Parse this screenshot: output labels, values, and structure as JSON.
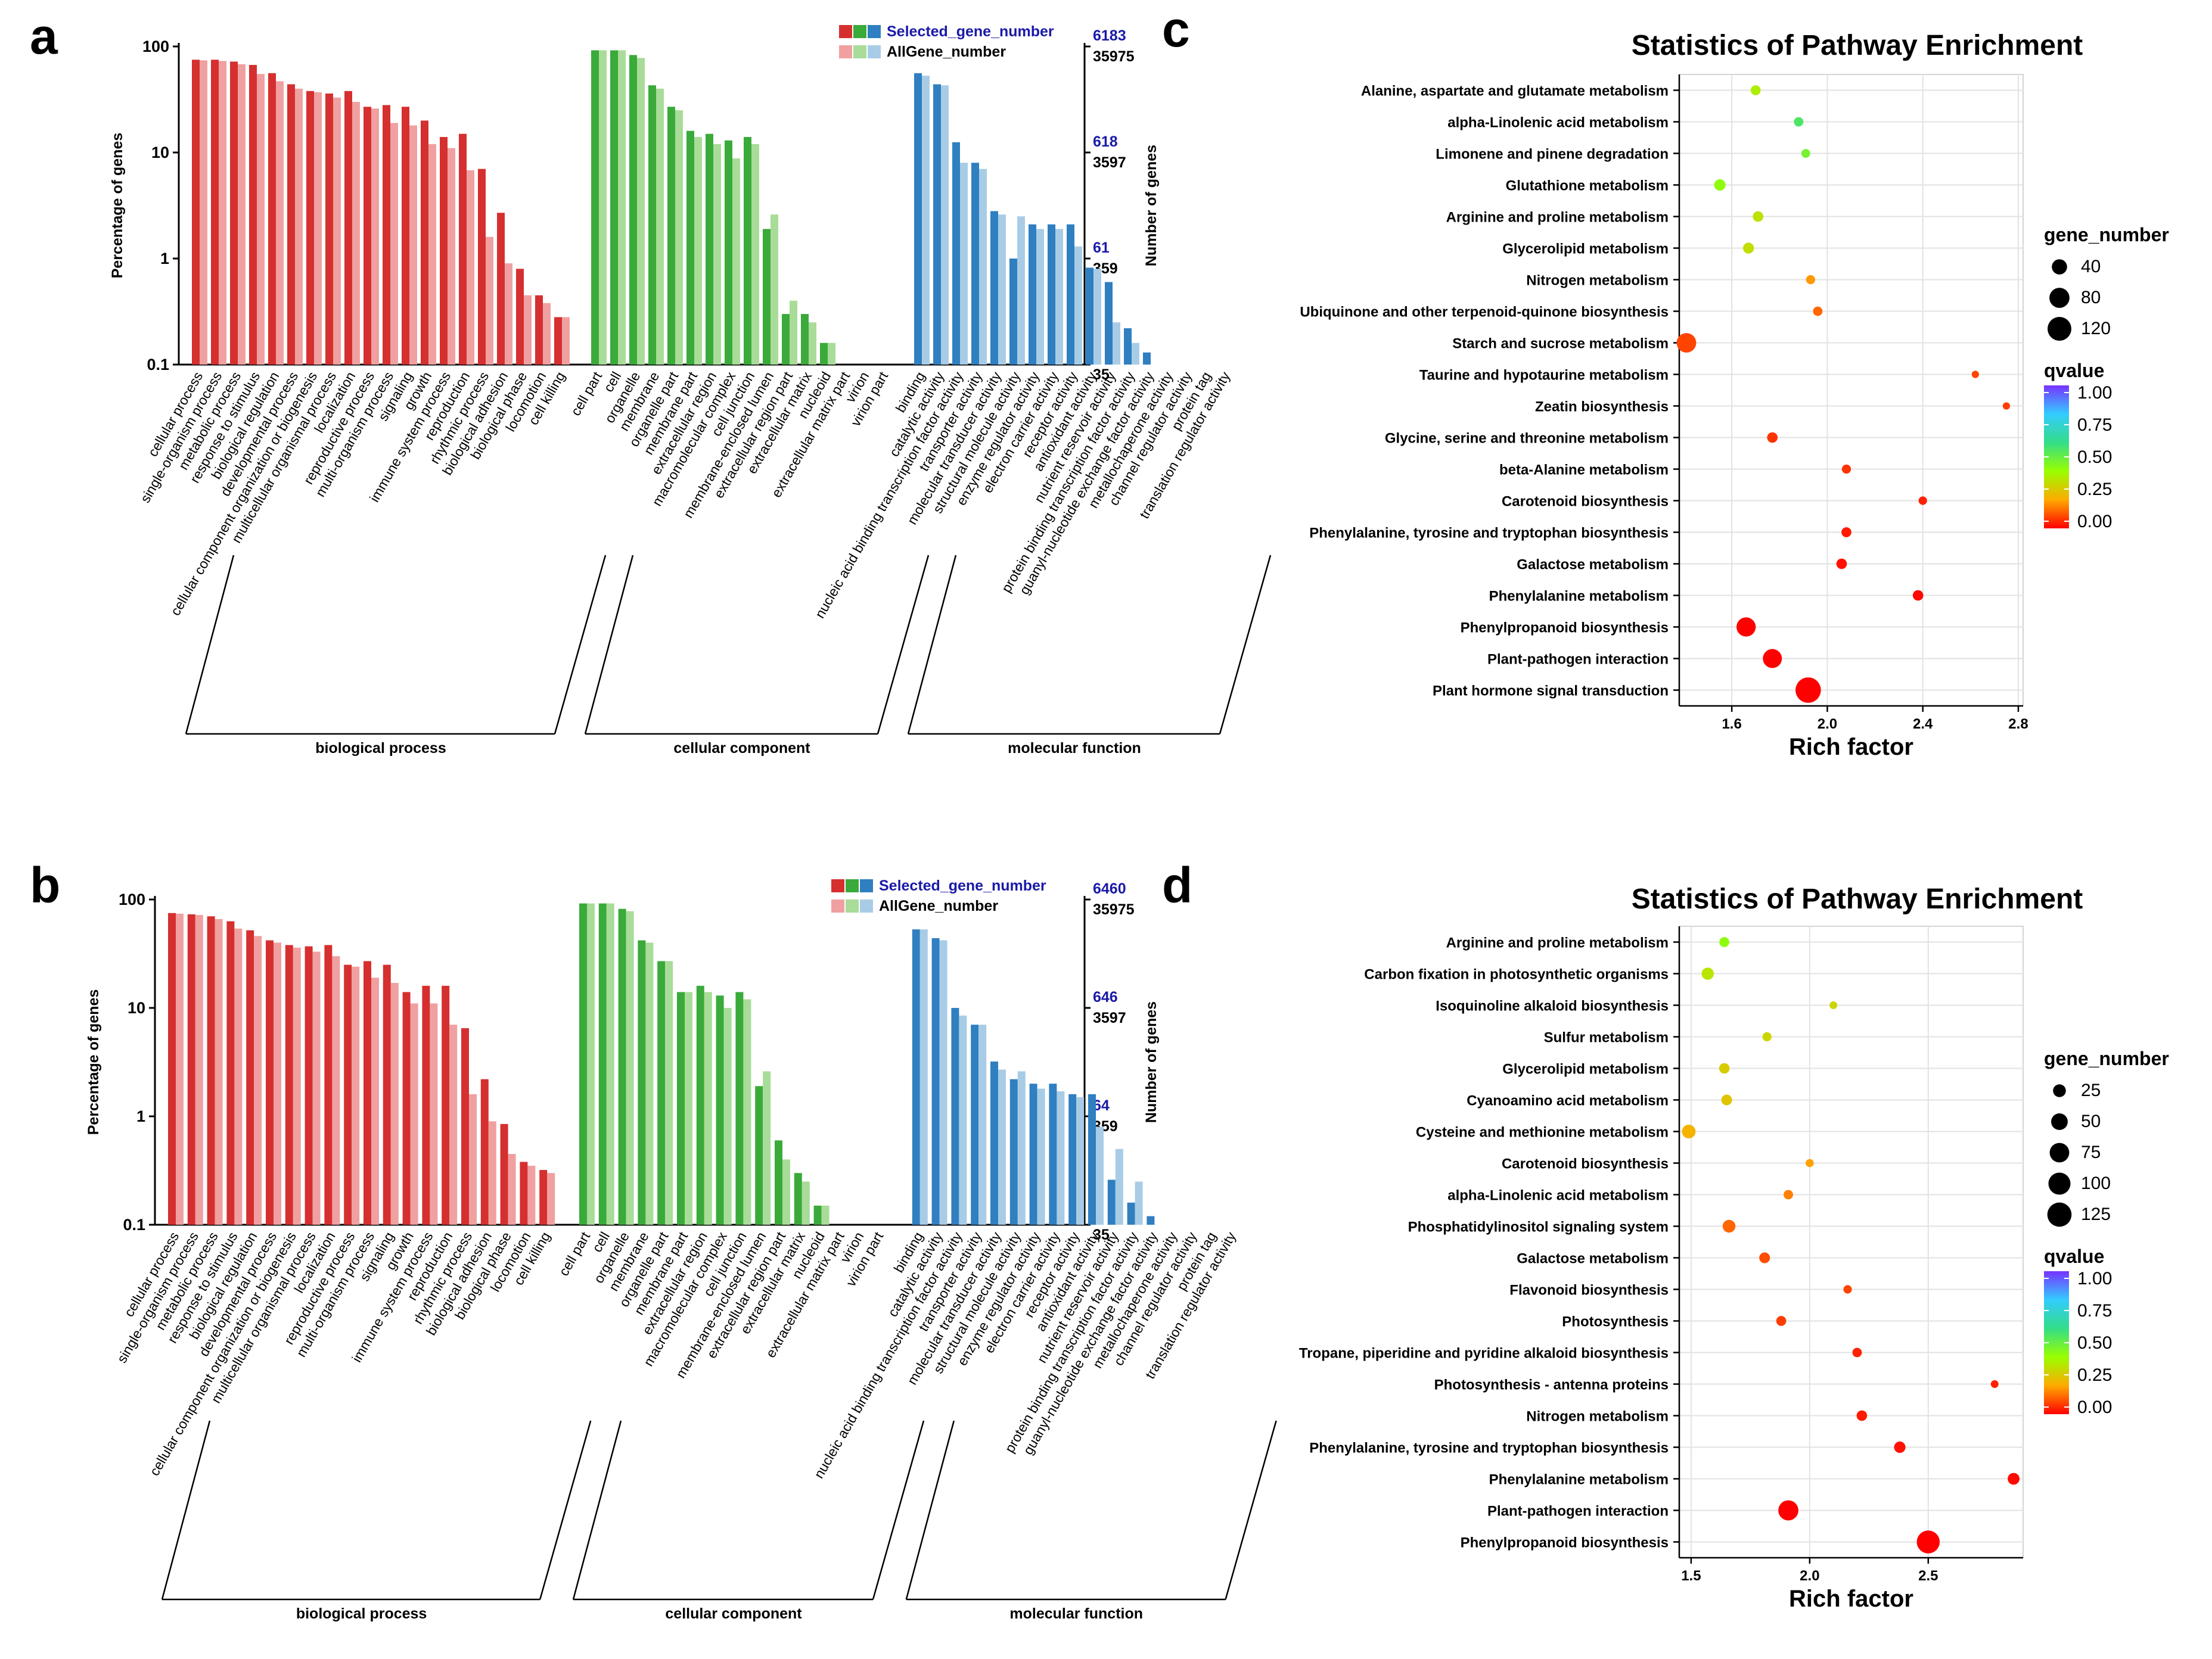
{
  "figure": {
    "panels": [
      "a",
      "b",
      "c",
      "d"
    ]
  },
  "chart_data": [
    {
      "panel": "a",
      "type": "bar",
      "ylabel_left": "Percentage of genes",
      "ylabel_right": "Number of genes",
      "yscale": "log",
      "left_ticks": [
        "100",
        "10",
        "1",
        "0.1"
      ],
      "right_ticks_selected": [
        "6183",
        "618",
        "61",
        "6"
      ],
      "right_ticks_all": [
        "35975",
        "3597",
        "359",
        "35"
      ],
      "legend": {
        "selected": "Selected_gene_number",
        "all": "AllGene_number"
      },
      "groups": [
        {
          "name": "biological process",
          "color_dark": "#d62f2f",
          "color_light": "#f0a0a0",
          "terms": [
            "cellular process",
            "single-organism process",
            "metabolic process",
            "response to stimulus",
            "biological regulation",
            "developmental process",
            "cellular component organization or biogenesis",
            "multicellular organismal process",
            "localization",
            "reproductive process",
            "multi-organism process",
            "signaling",
            "growth",
            "immune system process",
            "reproduction",
            "rhythmic process",
            "biological adhesion",
            "biological phase",
            "locomotion",
            "cell killing"
          ],
          "selected": [
            75,
            75,
            72,
            67,
            56,
            44,
            38,
            36,
            38,
            27,
            28,
            27,
            20,
            14,
            15,
            7,
            2.7,
            0.8,
            0.45,
            0.28
          ],
          "all": [
            74,
            73,
            68,
            55,
            47,
            40,
            37,
            33,
            30,
            26,
            19,
            18,
            12,
            11,
            6.8,
            1.6,
            0.9,
            0.45,
            0.38,
            0.28
          ]
        },
        {
          "name": "cellular component",
          "color_dark": "#3aaa3a",
          "color_light": "#a8dc98",
          "terms": [
            "cell part",
            "cell",
            "organelle",
            "membrane",
            "organelle part",
            "membrane part",
            "extracellular region",
            "macromolecular complex",
            "cell junction",
            "membrane-enclosed lumen",
            "extracellular region part",
            "extracellular matrix",
            "nucleoid",
            "extracellular matrix part",
            "virion",
            "virion part"
          ],
          "selected": [
            92,
            92,
            83,
            43,
            27,
            16,
            15,
            13,
            14,
            1.9,
            0.3,
            0.3,
            0.16,
            0,
            0,
            0
          ],
          "all": [
            92,
            92,
            78,
            40,
            25,
            14,
            12,
            8.8,
            12,
            2.6,
            0.4,
            0.25,
            0.16,
            0,
            0,
            0
          ]
        },
        {
          "name": "molecular function",
          "color_dark": "#2f7fc1",
          "color_light": "#a8cce6",
          "terms": [
            "binding",
            "catalytic activity",
            "nucleic acid binding transcription factor activity",
            "transporter activity",
            "molecular transducer activity",
            "structural molecule activity",
            "enzyme regulator activity",
            "electron carrier activity",
            "receptor activity",
            "antioxidant activity",
            "nutrient reservoir activity",
            "protein binding transcription factor activity",
            "guanyl-nucleotide exchange factor activity",
            "metallochaperone activity",
            "channel regulator activity",
            "protein tag",
            "translation regulator activity"
          ],
          "selected": [
            56,
            44,
            12.5,
            8,
            2.8,
            1,
            2.1,
            2.1,
            2.1,
            0.82,
            0.6,
            0.22,
            0.13,
            0,
            0,
            0,
            0
          ],
          "all": [
            53,
            43,
            8,
            7,
            2.6,
            2.5,
            1.9,
            1.9,
            1.3,
            0.8,
            0.25,
            0.16,
            0.1,
            0,
            0,
            0,
            0
          ]
        }
      ]
    },
    {
      "panel": "b",
      "type": "bar",
      "ylabel_left": "Percentage of genes",
      "ylabel_right": "Number of genes",
      "yscale": "log",
      "left_ticks": [
        "100",
        "10",
        "1",
        "0.1"
      ],
      "right_ticks_selected": [
        "6460",
        "646",
        "64",
        "6"
      ],
      "right_ticks_all": [
        "35975",
        "3597",
        "359",
        "35"
      ],
      "legend": {
        "selected": "Selected_gene_number",
        "all": "AllGene_number"
      },
      "groups": [
        {
          "name": "biological process",
          "color_dark": "#d62f2f",
          "color_light": "#f0a0a0",
          "terms": [
            "cellular process",
            "single-organism process",
            "metabolic process",
            "response to stimulus",
            "biological regulation",
            "developmental process",
            "cellular component organization or biogenesis",
            "multicellular organismal process",
            "localization",
            "reproductive process",
            "multi-organism process",
            "signaling",
            "growth",
            "immune system process",
            "reproduction",
            "rhythmic process",
            "biological adhesion",
            "biological phase",
            "locomotion",
            "cell killing"
          ],
          "selected": [
            75,
            73,
            70,
            63,
            52,
            42,
            38,
            37,
            38,
            25,
            27,
            25,
            14,
            16,
            16,
            6.5,
            2.2,
            0.85,
            0.38,
            0.32
          ],
          "all": [
            74,
            72,
            66,
            54,
            46,
            40,
            36,
            33,
            30,
            24,
            19,
            17,
            11,
            11,
            7,
            1.6,
            0.9,
            0.45,
            0.35,
            0.3
          ]
        },
        {
          "name": "cellular component",
          "color_dark": "#3aaa3a",
          "color_light": "#a8dc98",
          "terms": [
            "cell part",
            "cell",
            "organelle",
            "membrane",
            "organelle part",
            "membrane part",
            "extracellular region",
            "macromolecular complex",
            "cell junction",
            "membrane-enclosed lumen",
            "extracellular region part",
            "extracellular matrix",
            "nucleoid",
            "extracellular matrix part",
            "virion",
            "virion part"
          ],
          "selected": [
            92,
            92,
            82,
            42,
            27,
            14,
            16,
            13,
            14,
            1.9,
            0.6,
            0.3,
            0.15,
            0,
            0,
            0
          ],
          "all": [
            92,
            92,
            78,
            40,
            27,
            14,
            14,
            10,
            12,
            2.6,
            0.4,
            0.25,
            0.15,
            0,
            0,
            0
          ]
        },
        {
          "name": "molecular function",
          "color_dark": "#2f7fc1",
          "color_light": "#a8cce6",
          "terms": [
            "binding",
            "catalytic activity",
            "nucleic acid binding transcription factor activity",
            "transporter activity",
            "molecular transducer activity",
            "structural molecule activity",
            "enzyme regulator activity",
            "electron carrier activity",
            "receptor activity",
            "antioxidant activity",
            "nutrient reservoir activity",
            "protein binding transcription factor activity",
            "guanyl-nucleotide exchange factor activity",
            "metallochaperone activity",
            "channel regulator activity",
            "protein tag",
            "translation regulator activity"
          ],
          "selected": [
            53,
            44,
            10,
            7,
            3.2,
            2.2,
            2.0,
            2.0,
            1.6,
            1.6,
            0.26,
            0.16,
            0.12,
            0,
            0,
            0,
            0
          ],
          "all": [
            53,
            42,
            8.5,
            7,
            2.7,
            2.6,
            1.8,
            1.7,
            1.5,
            0.8,
            0.5,
            0.25,
            0.1,
            0,
            0,
            0,
            0
          ]
        }
      ]
    },
    {
      "panel": "c",
      "type": "scatter",
      "title": "Statistics of Pathway Enrichment",
      "xlabel": "Rich factor",
      "xlim": [
        1.38,
        2.82
      ],
      "xticks": [
        1.6,
        2.0,
        2.4,
        2.8
      ],
      "xtick_labels": [
        "1.6",
        "2.0",
        "2.4",
        "2.8"
      ],
      "size_legend_title": "gene_number",
      "size_legend": [
        40,
        80,
        120
      ],
      "size_legend_labels": [
        "40",
        "80",
        "120"
      ],
      "color_legend_title": "qvalue",
      "color_legend_labels": [
        "1.00",
        "0.75",
        "0.50",
        "0.25",
        "0.00"
      ],
      "colorscale": [
        "#ff0000",
        "#ffaa00",
        "#99ff00",
        "#33dd88",
        "#33ccff",
        "#7733ff"
      ],
      "grid": true,
      "points": [
        {
          "pathway": "Alanine, aspartate and glutamate metabolism",
          "x": 1.7,
          "q": 0.36,
          "n": 12
        },
        {
          "pathway": "alpha-Linolenic acid metabolism",
          "x": 1.88,
          "q": 0.55,
          "n": 10
        },
        {
          "pathway": "Limonene and pinene degradation",
          "x": 1.91,
          "q": 0.47,
          "n": 8
        },
        {
          "pathway": "Glutathione metabolism",
          "x": 1.55,
          "q": 0.42,
          "n": 18
        },
        {
          "pathway": "Arginine and proline metabolism",
          "x": 1.71,
          "q": 0.33,
          "n": 14
        },
        {
          "pathway": "Glycerolipid metabolism",
          "x": 1.67,
          "q": 0.32,
          "n": 16
        },
        {
          "pathway": "Nitrogen metabolism",
          "x": 1.93,
          "q": 0.18,
          "n": 9
        },
        {
          "pathway": "Ubiquinone and other terpenoid-quinone biosynthesis",
          "x": 1.96,
          "q": 0.12,
          "n": 10
        },
        {
          "pathway": "Starch and sucrose metabolism",
          "x": 1.41,
          "q": 0.08,
          "n": 75
        },
        {
          "pathway": "Taurine and hypotaurine metabolism",
          "x": 2.62,
          "q": 0.08,
          "n": 4
        },
        {
          "pathway": "Zeatin biosynthesis",
          "x": 2.75,
          "q": 0.07,
          "n": 4
        },
        {
          "pathway": "Glycine, serine and threonine metabolism",
          "x": 1.77,
          "q": 0.06,
          "n": 14
        },
        {
          "pathway": "beta-Alanine metabolism",
          "x": 2.08,
          "q": 0.06,
          "n": 9
        },
        {
          "pathway": "Carotenoid biosynthesis",
          "x": 2.4,
          "q": 0.04,
          "n": 7
        },
        {
          "pathway": "Phenylalanine, tyrosine and tryptophan biosynthesis",
          "x": 2.08,
          "q": 0.03,
          "n": 12
        },
        {
          "pathway": "Galactose metabolism",
          "x": 2.06,
          "q": 0.02,
          "n": 14
        },
        {
          "pathway": "Phenylalanine metabolism",
          "x": 2.38,
          "q": 0.01,
          "n": 14
        },
        {
          "pathway": "Phenylpropanoid biosynthesis",
          "x": 1.66,
          "q": 0.0,
          "n": 72
        },
        {
          "pathway": "Plant-pathogen interaction",
          "x": 1.77,
          "q": 0.0,
          "n": 70
        },
        {
          "pathway": "Plant hormone signal transduction",
          "x": 1.92,
          "q": 0.0,
          "n": 140
        }
      ]
    },
    {
      "panel": "d",
      "type": "scatter",
      "title": "Statistics of Pathway Enrichment",
      "xlabel": "Rich factor",
      "xlim": [
        1.45,
        2.9
      ],
      "xticks": [
        1.5,
        2.0,
        2.5
      ],
      "xtick_labels": [
        "1.5",
        "2.0",
        "2.5"
      ],
      "size_legend_title": "gene_number",
      "size_legend": [
        25,
        50,
        75,
        100,
        125
      ],
      "size_legend_labels": [
        "25",
        "50",
        "75",
        "100",
        "125"
      ],
      "color_legend_title": "qvalue",
      "color_legend_labels": [
        "1.00",
        "0.75",
        "0.50",
        "0.25",
        "0.00"
      ],
      "colorscale": [
        "#ff0000",
        "#ffaa00",
        "#99ff00",
        "#33dd88",
        "#33ccff",
        "#7733ff"
      ],
      "grid": true,
      "points": [
        {
          "pathway": "Arginine and proline metabolism",
          "x": 1.64,
          "q": 0.42,
          "n": 12
        },
        {
          "pathway": "Carbon fixation in photosynthetic organisms",
          "x": 1.57,
          "q": 0.34,
          "n": 22
        },
        {
          "pathway": "Isoquinoline alkaloid biosynthesis",
          "x": 2.1,
          "q": 0.3,
          "n": 5
        },
        {
          "pathway": "Sulfur metabolism",
          "x": 1.82,
          "q": 0.3,
          "n": 9
        },
        {
          "pathway": "Glycerolipid metabolism",
          "x": 1.64,
          "q": 0.28,
          "n": 14
        },
        {
          "pathway": "Cyanoamino acid metabolism",
          "x": 1.65,
          "q": 0.26,
          "n": 15
        },
        {
          "pathway": "Cysteine and methionine metabolism",
          "x": 1.49,
          "q": 0.22,
          "n": 30
        },
        {
          "pathway": "Carotenoid biosynthesis",
          "x": 2.0,
          "q": 0.19,
          "n": 6
        },
        {
          "pathway": "alpha-Linolenic acid metabolism",
          "x": 1.91,
          "q": 0.15,
          "n": 10
        },
        {
          "pathway": "Phosphatidylinositol signaling system",
          "x": 1.66,
          "q": 0.12,
          "n": 25
        },
        {
          "pathway": "Galactose metabolism",
          "x": 1.81,
          "q": 0.09,
          "n": 15
        },
        {
          "pathway": "Flavonoid biosynthesis",
          "x": 2.16,
          "q": 0.08,
          "n": 7
        },
        {
          "pathway": "Photosynthesis",
          "x": 1.88,
          "q": 0.07,
          "n": 12
        },
        {
          "pathway": "Tropane, piperidine and pyridine alkaloid biosynthesis",
          "x": 2.2,
          "q": 0.04,
          "n": 10
        },
        {
          "pathway": "Photosynthesis - antenna proteins",
          "x": 2.78,
          "q": 0.04,
          "n": 5
        },
        {
          "pathway": "Nitrogen metabolism",
          "x": 2.22,
          "q": 0.03,
          "n": 14
        },
        {
          "pathway": "Phenylalanine, tyrosine and tryptophan biosynthesis",
          "x": 2.38,
          "q": 0.02,
          "n": 18
        },
        {
          "pathway": "Phenylalanine metabolism",
          "x": 2.86,
          "q": 0.01,
          "n": 20
        },
        {
          "pathway": "Plant-pathogen interaction",
          "x": 1.91,
          "q": 0.0,
          "n": 80
        },
        {
          "pathway": "Phenylpropanoid biosynthesis",
          "x": 2.5,
          "q": 0.0,
          "n": 110
        }
      ]
    }
  ]
}
